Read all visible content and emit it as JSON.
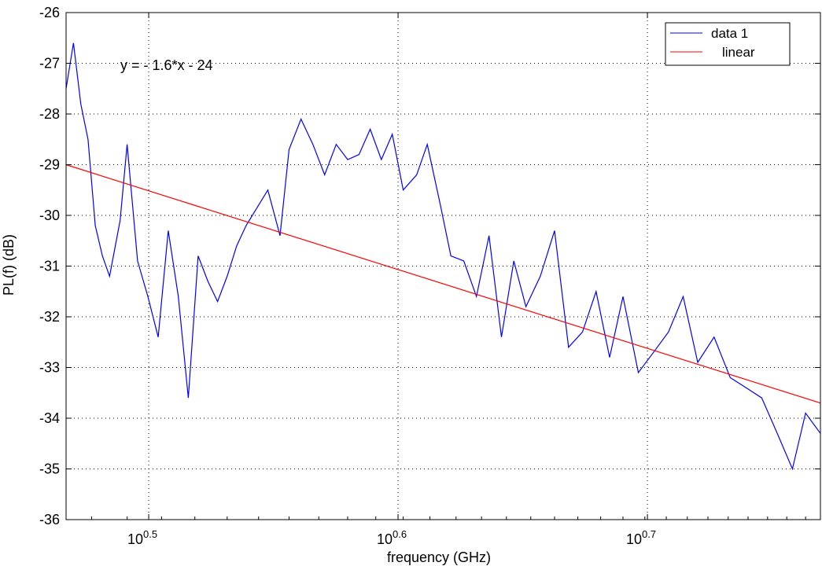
{
  "chart_data": {
    "type": "line",
    "xlabel": "frequency (GHz)",
    "ylabel": "PL(f) (dB)",
    "xscale": "log10",
    "xlim": [
      2.93,
      5.88
    ],
    "ylim": [
      -36,
      -26
    ],
    "grid": true,
    "x_ticks": [
      {
        "value": 3.1623,
        "base": "10",
        "exp": "0.5"
      },
      {
        "value": 3.9811,
        "base": "10",
        "exp": "0.6"
      },
      {
        "value": 5.0119,
        "base": "10",
        "exp": "0.7"
      }
    ],
    "y_ticks": [
      -26,
      -27,
      -28,
      -29,
      -30,
      -31,
      -32,
      -33,
      -34,
      -35,
      -36
    ],
    "legend_position": "top-right",
    "annotation": "y = - 1.6*x - 24",
    "series": [
      {
        "name": "data 1",
        "color": "#0000ff",
        "x": [
          2.93,
          2.95,
          2.97,
          2.99,
          3.01,
          3.03,
          3.05,
          3.08,
          3.1,
          3.13,
          3.16,
          3.19,
          3.22,
          3.25,
          3.28,
          3.31,
          3.34,
          3.37,
          3.4,
          3.43,
          3.46,
          3.5,
          3.53,
          3.57,
          3.6,
          3.64,
          3.68,
          3.72,
          3.76,
          3.8,
          3.84,
          3.88,
          3.92,
          3.96,
          4.0,
          4.05,
          4.09,
          4.14,
          4.18,
          4.23,
          4.28,
          4.33,
          4.38,
          4.43,
          4.48,
          4.54,
          4.6,
          4.66,
          4.72,
          4.78,
          4.84,
          4.9,
          4.97,
          5.04,
          5.11,
          5.18,
          5.25,
          5.33,
          5.41,
          5.49,
          5.57,
          5.65,
          5.73,
          5.8,
          5.88
        ],
        "values": [
          -27.5,
          -26.6,
          -27.8,
          -28.5,
          -30.2,
          -30.8,
          -31.2,
          -30.1,
          -28.6,
          -30.9,
          -31.6,
          -32.4,
          -30.3,
          -31.6,
          -33.6,
          -30.8,
          -31.3,
          -31.7,
          -31.2,
          -30.6,
          -30.2,
          -29.8,
          -29.5,
          -30.4,
          -28.7,
          -28.1,
          -28.6,
          -29.2,
          -28.6,
          -28.9,
          -28.8,
          -28.3,
          -28.9,
          -28.4,
          -29.5,
          -29.2,
          -28.6,
          -29.8,
          -30.8,
          -30.9,
          -31.6,
          -30.4,
          -32.4,
          -30.9,
          -31.8,
          -31.2,
          -30.3,
          -32.6,
          -32.3,
          -31.5,
          -32.8,
          -31.6,
          -33.1,
          -32.7,
          -32.3,
          -31.6,
          -32.9,
          -32.4,
          -33.2,
          -33.4,
          -33.6,
          -34.3,
          -35.0,
          -33.9,
          -34.3
        ]
      },
      {
        "name": "linear",
        "color": "#ff0000",
        "x": [
          2.93,
          5.88
        ],
        "values": [
          -29.0,
          -33.7
        ]
      }
    ]
  }
}
